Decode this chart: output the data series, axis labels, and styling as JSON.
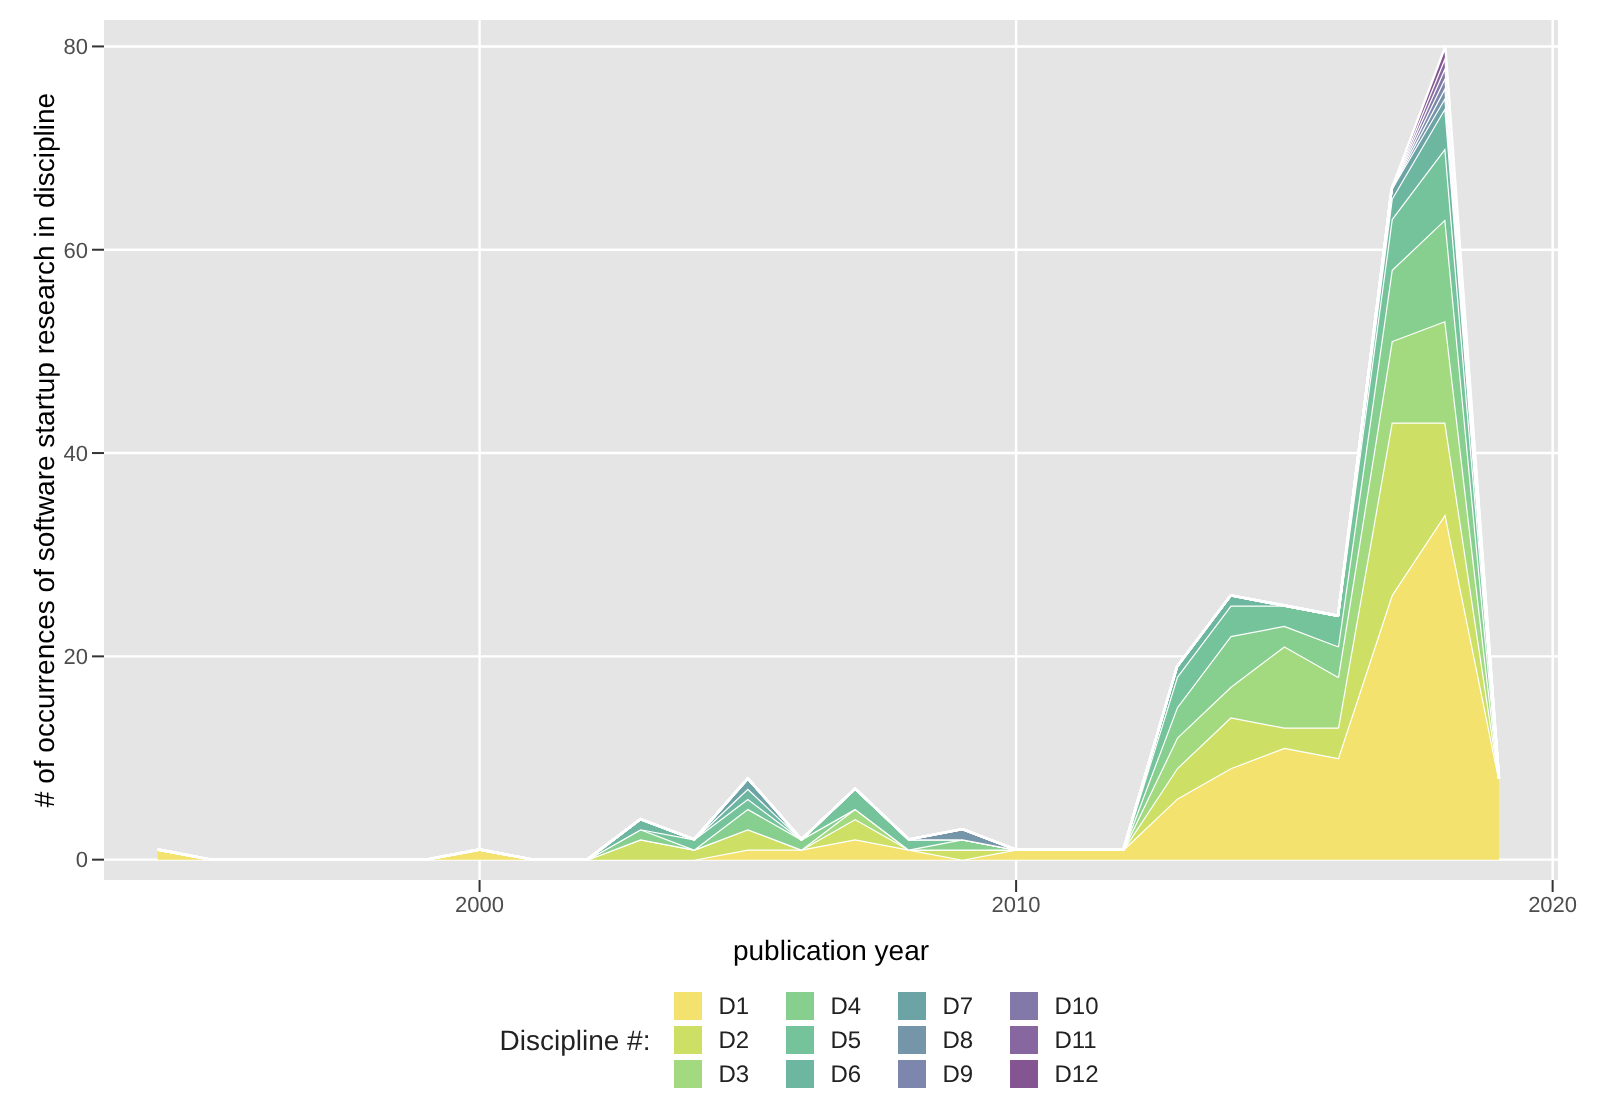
{
  "chart_data": {
    "type": "area",
    "stacked": true,
    "xlabel": "publication year",
    "ylabel": "# of occurrences of software startup research in discipline",
    "legend_title": "Discipline #:",
    "legend": "bottom",
    "grid": true,
    "x": [
      1994,
      1995,
      1996,
      1997,
      1998,
      1999,
      2000,
      2001,
      2002,
      2003,
      2004,
      2005,
      2006,
      2007,
      2008,
      2009,
      2010,
      2011,
      2012,
      2013,
      2014,
      2015,
      2016,
      2017,
      2018,
      2019
    ],
    "xlim": [
      1993,
      2020.1
    ],
    "xticks": [
      2000,
      2010,
      2020
    ],
    "ylim": [
      -2,
      82.6
    ],
    "yticks": [
      0,
      20,
      40,
      60,
      80
    ],
    "series": [
      {
        "name": "D1",
        "color": "#f3e26e",
        "values": [
          1,
          0,
          0,
          0,
          0,
          0,
          1,
          0,
          0,
          0,
          0,
          1,
          1,
          2,
          1,
          0,
          1,
          1,
          1,
          6,
          9,
          11,
          10,
          26,
          34,
          8
        ]
      },
      {
        "name": "D2",
        "color": "#cde065",
        "values": [
          0,
          0,
          0,
          0,
          0,
          0,
          0,
          0,
          0,
          2,
          1,
          2,
          0,
          2,
          0,
          1,
          0,
          0,
          0,
          3,
          5,
          2,
          3,
          17,
          9,
          0
        ]
      },
      {
        "name": "D3",
        "color": "#a3d97f",
        "values": [
          0,
          0,
          0,
          0,
          0,
          0,
          0,
          0,
          0,
          0,
          0,
          0,
          0,
          1,
          0,
          0,
          0,
          0,
          0,
          3,
          3,
          8,
          5,
          8,
          10,
          0
        ]
      },
      {
        "name": "D4",
        "color": "#86cf8e",
        "values": [
          0,
          0,
          0,
          0,
          0,
          0,
          0,
          0,
          0,
          1,
          0,
          2,
          1,
          0,
          0,
          1,
          0,
          0,
          0,
          3,
          5,
          2,
          3,
          7,
          10,
          0
        ]
      },
      {
        "name": "D5",
        "color": "#75c39a",
        "values": [
          0,
          0,
          0,
          0,
          0,
          0,
          0,
          0,
          0,
          0,
          1,
          1,
          0,
          2,
          1,
          0,
          0,
          0,
          0,
          3,
          3,
          2,
          3,
          5,
          7,
          0
        ]
      },
      {
        "name": "D6",
        "color": "#6db7a0",
        "values": [
          0,
          0,
          0,
          0,
          0,
          0,
          0,
          0,
          0,
          1,
          0,
          1,
          0,
          0,
          0,
          0,
          0,
          0,
          0,
          1,
          1,
          0,
          0,
          2,
          4,
          0
        ]
      },
      {
        "name": "D7",
        "color": "#6ca3a5",
        "values": [
          0,
          0,
          0,
          0,
          0,
          0,
          0,
          0,
          0,
          0,
          0,
          1,
          0,
          0,
          0,
          0,
          0,
          0,
          0,
          0,
          0,
          0,
          0,
          1,
          1,
          0
        ]
      },
      {
        "name": "D8",
        "color": "#7595a9",
        "values": [
          0,
          0,
          0,
          0,
          0,
          0,
          0,
          0,
          0,
          0,
          0,
          0,
          0,
          0,
          0,
          1,
          0,
          0,
          0,
          0,
          0,
          0,
          0,
          0,
          1,
          0
        ]
      },
      {
        "name": "D9",
        "color": "#7d87ad",
        "values": [
          0,
          0,
          0,
          0,
          0,
          0,
          0,
          0,
          0,
          0,
          0,
          0,
          0,
          0,
          0,
          0,
          0,
          0,
          0,
          0,
          0,
          0,
          0,
          0,
          1,
          0
        ]
      },
      {
        "name": "D10",
        "color": "#8379a9",
        "values": [
          0,
          0,
          0,
          0,
          0,
          0,
          0,
          0,
          0,
          0,
          0,
          0,
          0,
          0,
          0,
          0,
          0,
          0,
          0,
          0,
          0,
          0,
          0,
          0,
          1,
          0
        ]
      },
      {
        "name": "D11",
        "color": "#86679f",
        "values": [
          0,
          0,
          0,
          0,
          0,
          0,
          0,
          0,
          0,
          0,
          0,
          0,
          0,
          0,
          0,
          0,
          0,
          0,
          0,
          0,
          0,
          0,
          0,
          0,
          1,
          0
        ]
      },
      {
        "name": "D12",
        "color": "#855591",
        "values": [
          0,
          0,
          0,
          0,
          0,
          0,
          0,
          0,
          0,
          0,
          0,
          0,
          0,
          0,
          0,
          0,
          0,
          0,
          0,
          0,
          0,
          0,
          0,
          0,
          1,
          0
        ]
      }
    ]
  }
}
